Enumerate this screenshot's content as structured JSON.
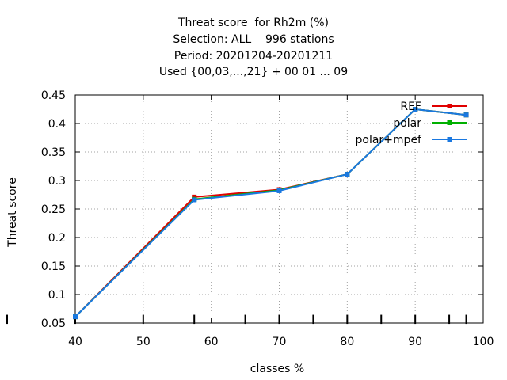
{
  "chart_data": {
    "type": "line",
    "title_lines": [
      "Threat score  for Rh2m (%)",
      "Selection: ALL    996 stations",
      "Period: 20201204-20201211",
      "Used {00,03,...,21} + 00 01 ... 09"
    ],
    "xlabel": "classes %",
    "ylabel": "Threat score",
    "xlim": [
      40,
      100
    ],
    "ylim": [
      0.05,
      0.45
    ],
    "x_ticks": [
      "40",
      "50",
      "60",
      "70",
      "80",
      "90",
      "100"
    ],
    "y_ticks": [
      "0.05",
      "0.1",
      "0.15",
      "0.2",
      "0.25",
      "0.3",
      "0.35",
      "0.4",
      "0.45"
    ],
    "x_tick_values": [
      40,
      50,
      60,
      70,
      80,
      90,
      100
    ],
    "y_tick_values": [
      0.05,
      0.1,
      0.15,
      0.2,
      0.25,
      0.3,
      0.35,
      0.4,
      0.45
    ],
    "grid": true,
    "legend_position": "top-right",
    "class_marks": [
      40,
      50,
      57.5,
      65,
      70,
      75,
      80,
      85,
      90,
      95,
      97.5
    ],
    "series": [
      {
        "name": "REF",
        "color": "#e00000",
        "x": [
          40,
          57.5,
          70,
          80,
          90,
          97.5
        ],
        "y": [
          0.061,
          0.271,
          0.284,
          0.311,
          0.425,
          0.415
        ]
      },
      {
        "name": "polar",
        "color": "#00b000",
        "x": [
          40,
          57.5,
          70,
          80,
          90,
          97.5
        ],
        "y": [
          0.061,
          0.267,
          0.283,
          0.311,
          0.425,
          0.415
        ]
      },
      {
        "name": "polar+mpef",
        "color": "#1a78e0",
        "x": [
          40,
          57.5,
          70,
          80,
          90,
          97.5
        ],
        "y": [
          0.061,
          0.266,
          0.282,
          0.311,
          0.425,
          0.415
        ]
      }
    ]
  }
}
